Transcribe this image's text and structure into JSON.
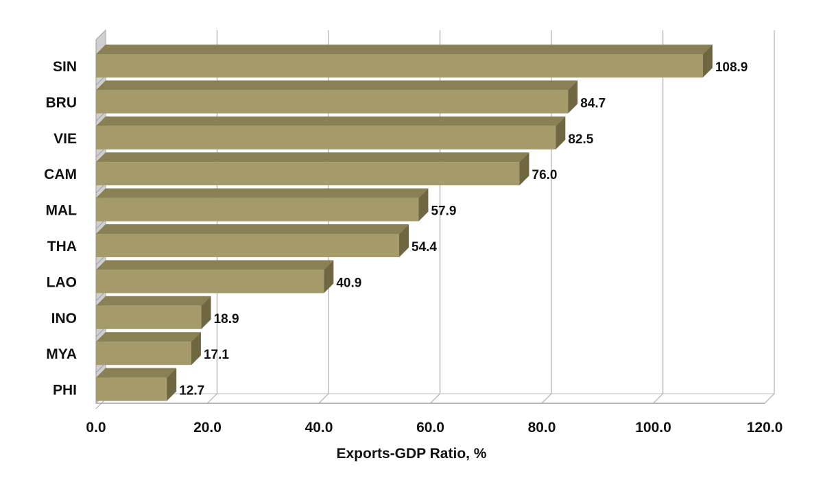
{
  "chart_data": {
    "type": "bar",
    "orientation": "horizontal",
    "style": "3d",
    "categories": [
      "SIN",
      "BRU",
      "VIE",
      "CAM",
      "MAL",
      "THA",
      "LAO",
      "INO",
      "MYA",
      "PHI"
    ],
    "values": [
      108.9,
      84.7,
      82.5,
      76.0,
      57.9,
      54.4,
      40.9,
      18.9,
      17.1,
      12.7
    ],
    "value_labels": [
      "108.9",
      "84.7",
      "82.5",
      "76.0",
      "57.9",
      "54.4",
      "40.9",
      "18.9",
      "17.1",
      "12.7"
    ],
    "xlabel": "Exports-GDP Ratio, %",
    "ylabel": "",
    "xlim": [
      0,
      120
    ],
    "x_ticks": [
      0,
      20,
      40,
      60,
      80,
      100,
      120
    ],
    "x_tick_labels": [
      "0.0",
      "20.0",
      "40.0",
      "60.0",
      "80.0",
      "100.0",
      "120.0"
    ],
    "grid": true,
    "legend": "none",
    "colors": {
      "bar_front": "#A59A6A",
      "bar_top": "#8A8055",
      "bar_side": "#6F6642",
      "gridline": "#BDBDBD",
      "wall": "#CFCFCF"
    }
  }
}
